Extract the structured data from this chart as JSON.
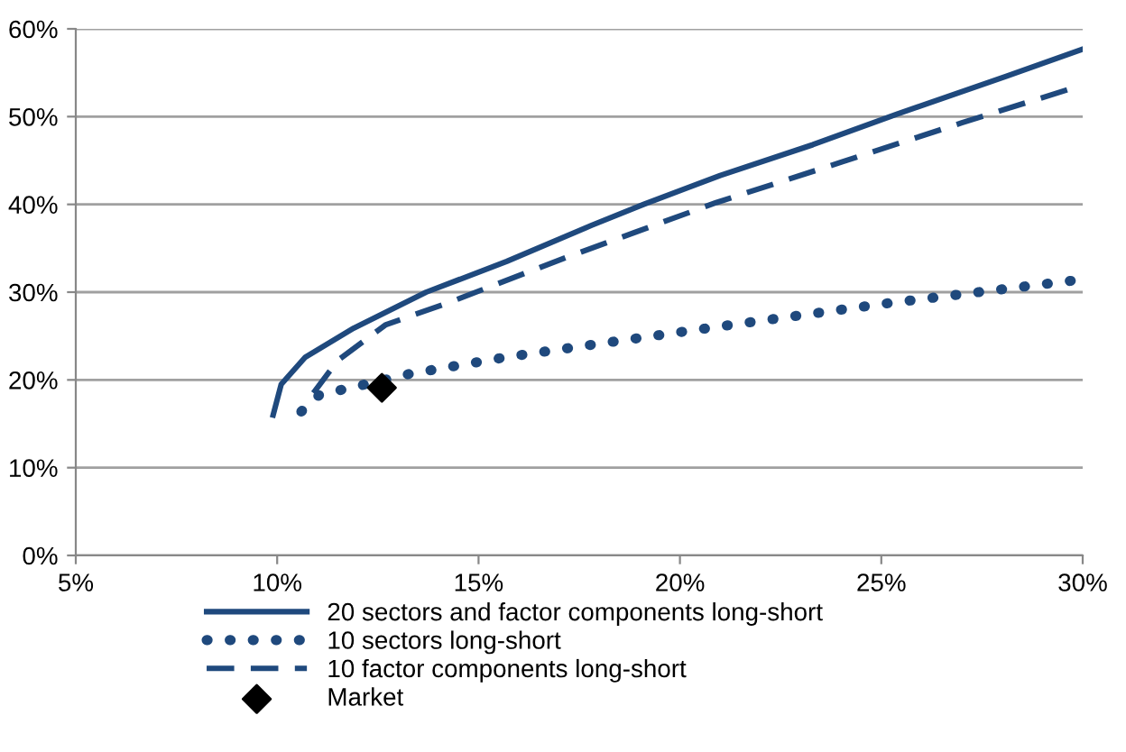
{
  "chart_data": {
    "type": "line",
    "xlim": [
      5,
      30
    ],
    "ylim": [
      0,
      60
    ],
    "xticks": [
      {
        "value": 5,
        "label": "5%"
      },
      {
        "value": 10,
        "label": "10%"
      },
      {
        "value": 15,
        "label": "15%"
      },
      {
        "value": 20,
        "label": "20%"
      },
      {
        "value": 25,
        "label": "25%"
      },
      {
        "value": 30,
        "label": "30%"
      }
    ],
    "yticks": [
      {
        "value": 0,
        "label": "0%"
      },
      {
        "value": 10,
        "label": "10%"
      },
      {
        "value": 20,
        "label": "20%"
      },
      {
        "value": 30,
        "label": "30%"
      },
      {
        "value": 40,
        "label": "40%"
      },
      {
        "value": 50,
        "label": "50%"
      },
      {
        "value": 60,
        "label": "60%"
      }
    ],
    "grid": "y",
    "legend": "bottom",
    "series": [
      {
        "name": "20 sectors and factor components long-short",
        "color": "#1f497d",
        "line_style": "solid",
        "x": [
          9.9,
          10.1,
          10.7,
          11.9,
          13.7,
          15.7,
          17.8,
          19.1,
          21.0,
          23.3,
          25.4,
          28.1,
          30
        ],
        "values": [
          16,
          19.5,
          22.6,
          25.9,
          30,
          33.5,
          37.6,
          40,
          43.3,
          46.8,
          50.3,
          54.6,
          57.7
        ]
      },
      {
        "name": "10 sectors long-short",
        "color": "#1f497d",
        "line_style": "dotted",
        "x": [
          10.6,
          11.05,
          12.2,
          13.3,
          15.7,
          17.5,
          21.0,
          25.1,
          29.9
        ],
        "values": [
          16.4,
          18.3,
          19.5,
          20.7,
          22.6,
          23.8,
          26.1,
          28.7,
          31.4
        ]
      },
      {
        "name": "10 factor components long-short",
        "color": "#1f497d",
        "line_style": "dashed",
        "x": [
          10.9,
          11.5,
          12.7,
          14.2,
          17.2,
          20.9,
          24,
          27,
          30
        ],
        "values": [
          18.5,
          22.2,
          26.3,
          28.7,
          34,
          40.2,
          44.8,
          49.3,
          53.6
        ]
      },
      {
        "name": "Market",
        "type": "scatter",
        "marker": "diamond",
        "color": "#000000",
        "x": [
          12.6
        ],
        "values": [
          19.1
        ]
      }
    ]
  }
}
